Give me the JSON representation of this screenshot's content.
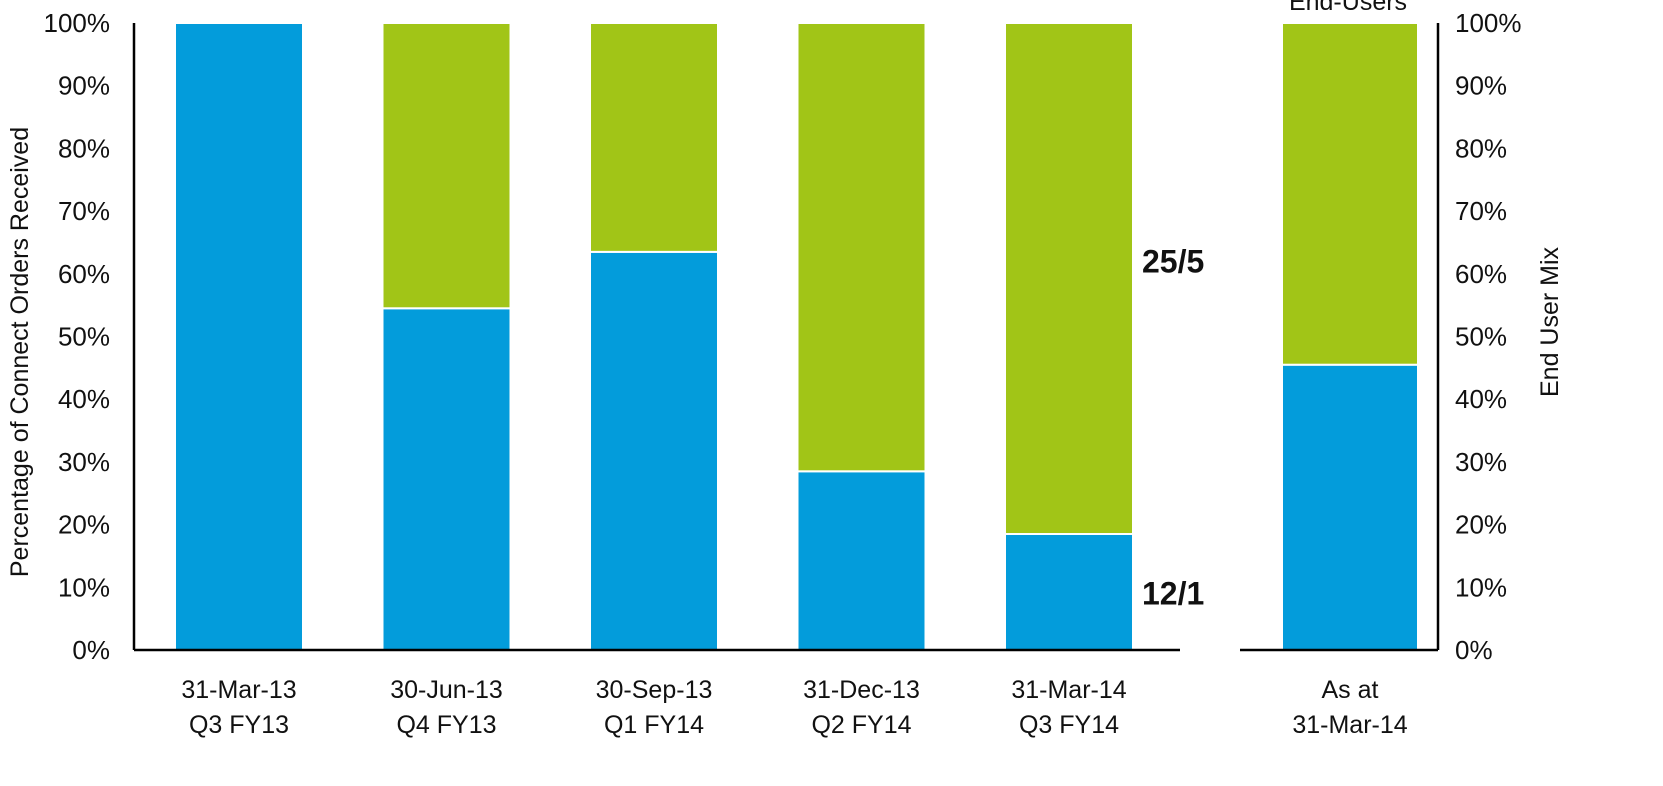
{
  "chart_data": {
    "type": "bar",
    "stacked": true,
    "normalized": true,
    "ylabel": "Percentage of Connect Orders Received",
    "ylabel_right": "End User Mix",
    "y_ticks": [
      "0%",
      "10%",
      "20%",
      "30%",
      "40%",
      "50%",
      "60%",
      "70%",
      "80%",
      "90%",
      "100%"
    ],
    "ylim": [
      0,
      100
    ],
    "colors": {
      "blue": "#039CDB",
      "green": "#A1C517"
    },
    "main_panel": {
      "categories": [
        {
          "line1": "31-Mar-13",
          "line2": "Q3 FY13"
        },
        {
          "line1": "30-Jun-13",
          "line2": "Q4 FY13"
        },
        {
          "line1": "30-Sep-13",
          "line2": "Q1 FY14"
        },
        {
          "line1": "31-Dec-13",
          "line2": "Q2 FY14"
        },
        {
          "line1": "31-Mar-14",
          "line2": "Q3 FY14"
        }
      ],
      "series": [
        {
          "color": "#039CDB",
          "values": [
            100,
            54.5,
            63.5,
            28.5,
            18.5
          ]
        },
        {
          "color": "#A1C517",
          "values": [
            0,
            45.5,
            36.5,
            71.5,
            81.5
          ]
        }
      ],
      "annotations": [
        {
          "text": "25/5",
          "y": 62
        },
        {
          "text": "12/1",
          "y": 9
        }
      ]
    },
    "side_panel": {
      "header": "End-Users",
      "categories": [
        {
          "line1": "As at",
          "line2": "31-Mar-14"
        }
      ],
      "series": [
        {
          "color": "#039CDB",
          "values": [
            45.5
          ]
        },
        {
          "color": "#A1C517",
          "values": [
            54.5
          ]
        }
      ]
    }
  }
}
